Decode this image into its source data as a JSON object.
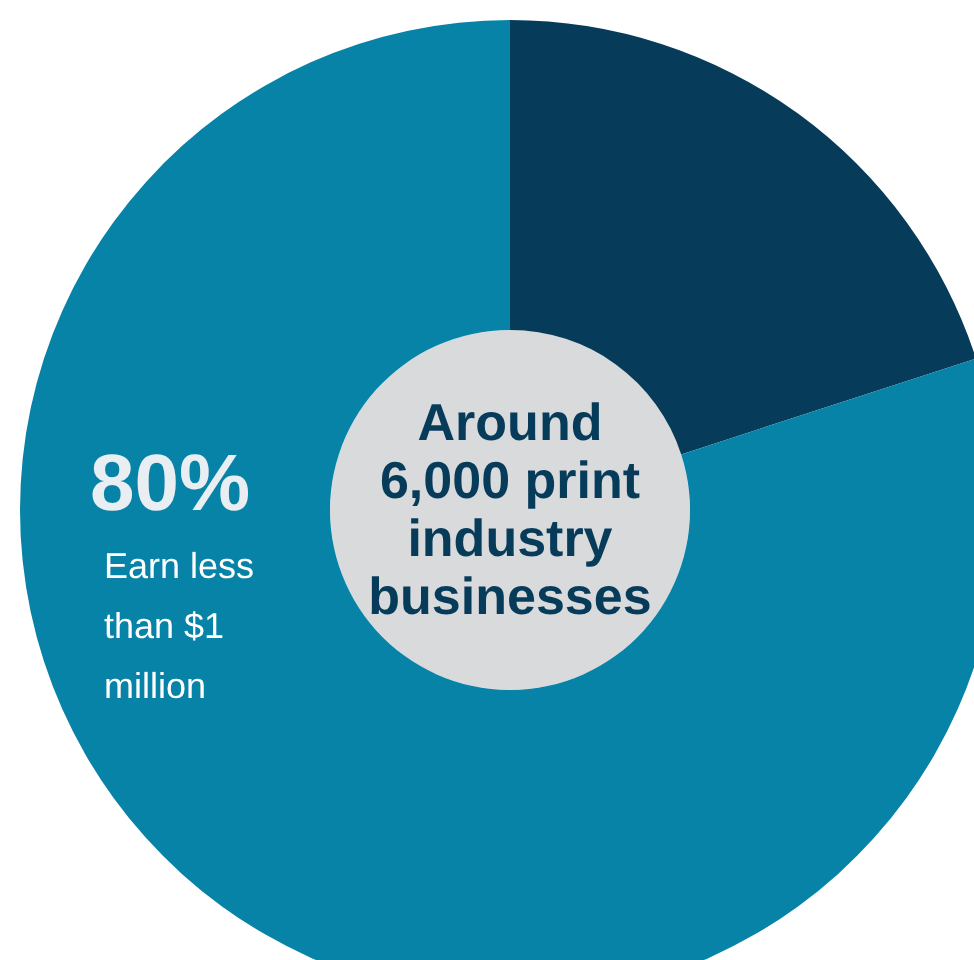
{
  "chart_data": {
    "type": "donut",
    "title": "Around 6,000 print industry businesses",
    "categories": [
      null,
      "Earn less than $1 million"
    ],
    "values": [
      20,
      80
    ],
    "colors": [
      "#073b5a",
      "#0883a8"
    ],
    "value_labels": [
      null,
      "80%"
    ]
  }
}
